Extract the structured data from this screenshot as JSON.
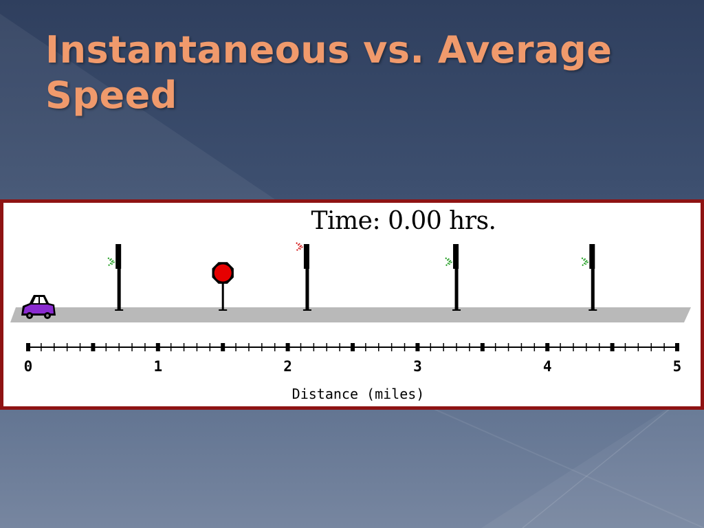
{
  "slide": {
    "title": "Instantaneous vs. Average Speed"
  },
  "diagram": {
    "time_label": "Time:",
    "time_value": "0.00",
    "time_unit": "hrs.",
    "axis_label": "Distance (miles)",
    "axis_min": 0,
    "axis_max": 5,
    "major_ticks": [
      "0",
      "1",
      "2",
      "3",
      "4",
      "5"
    ],
    "car_position_miles": 0,
    "road_objects": [
      {
        "type": "traffic-light",
        "position_miles": 0.7,
        "signal": "green"
      },
      {
        "type": "stop-sign",
        "position_miles": 1.5
      },
      {
        "type": "traffic-light",
        "position_miles": 2.15,
        "signal": "red"
      },
      {
        "type": "traffic-light",
        "position_miles": 3.3,
        "signal": "green"
      },
      {
        "type": "traffic-light",
        "position_miles": 4.35,
        "signal": "green"
      }
    ],
    "colors": {
      "frame": "#8e1313",
      "road": "#b9b9b9",
      "car": "#8a2bd0",
      "stop_sign": "#e60000",
      "signal_green": "#1a9a1a",
      "signal_red": "#d41a1a",
      "title": "#f09a6c"
    }
  }
}
